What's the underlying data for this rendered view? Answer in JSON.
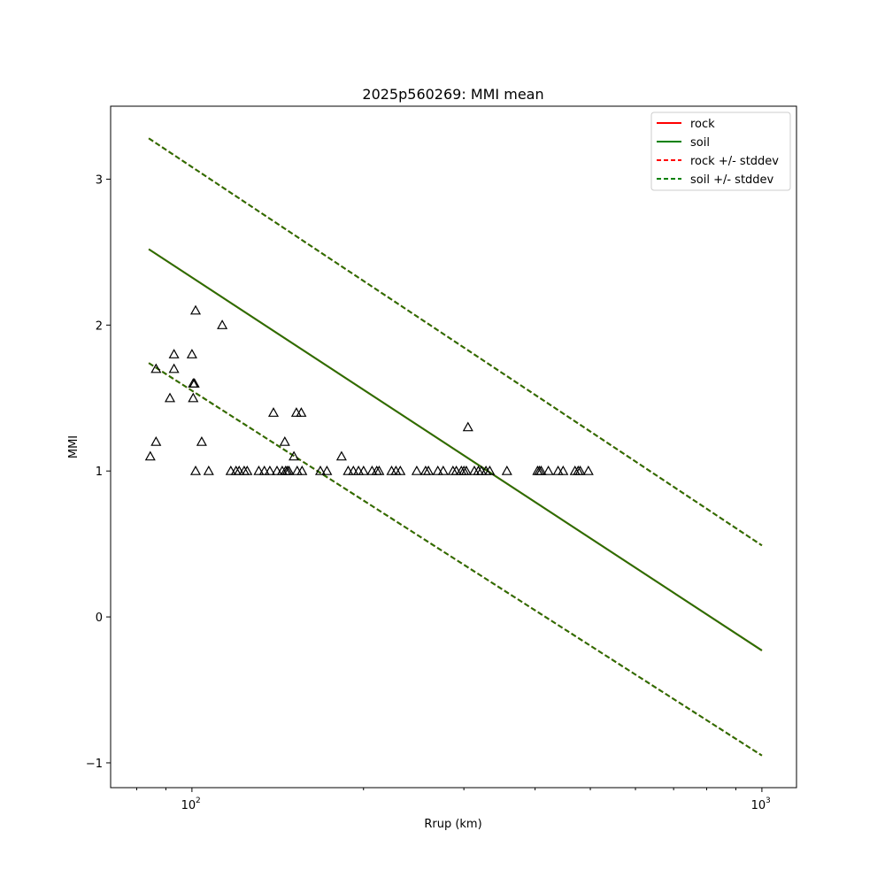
{
  "chart_data": {
    "type": "scatter",
    "title": "2025p560269: MMI mean",
    "xlabel": "Rrup (km)",
    "ylabel": "MMI",
    "xscale": "log",
    "xlim": [
      72,
      1150
    ],
    "ylim": [
      -1.17,
      3.5
    ],
    "xticks": [
      {
        "value": 100,
        "label": "10",
        "exp": "2"
      },
      {
        "value": 1000,
        "label": "10",
        "exp": "3"
      }
    ],
    "yticks": [
      {
        "value": -1,
        "label": "−1"
      },
      {
        "value": 0,
        "label": "0"
      },
      {
        "value": 1,
        "label": "1"
      },
      {
        "value": 2,
        "label": "2"
      },
      {
        "value": 3,
        "label": "3"
      }
    ],
    "legend": {
      "position": "top-right",
      "entries": [
        {
          "label": "rock",
          "color": "#ff0000",
          "style": "solid"
        },
        {
          "label": "soil",
          "color": "#008000",
          "style": "solid"
        },
        {
          "label": "rock +/- stddev",
          "color": "#ff0000",
          "style": "dashed"
        },
        {
          "label": "soil +/- stddev",
          "color": "#008000",
          "style": "dashed"
        }
      ]
    },
    "lines": [
      {
        "name": "rock",
        "color": "#ff0000",
        "style": "solid",
        "x": [
          84,
          1000
        ],
        "y": [
          2.52,
          -0.23
        ]
      },
      {
        "name": "rock +/- stddev",
        "color": "#ff0000",
        "style": "dashed",
        "x": [
          84,
          1000
        ],
        "y": [
          3.28,
          0.49
        ]
      },
      {
        "name": "rock +/- stddev",
        "color": "#ff0000",
        "style": "dashed",
        "x": [
          84,
          1000
        ],
        "y": [
          1.74,
          -0.95
        ]
      },
      {
        "name": "soil",
        "color": "#267300",
        "style": "solid",
        "x": [
          84,
          1000
        ],
        "y": [
          2.52,
          -0.23
        ]
      },
      {
        "name": "soil +/- stddev",
        "color": "#267300",
        "style": "dashed",
        "x": [
          84,
          1000
        ],
        "y": [
          3.28,
          0.49
        ]
      },
      {
        "name": "soil +/- stddev",
        "color": "#267300",
        "style": "dashed",
        "x": [
          84,
          1000
        ],
        "y": [
          1.74,
          -0.95
        ]
      }
    ],
    "points": {
      "marker": "triangle",
      "color": "#000000",
      "data": [
        [
          84.5,
          1.1
        ],
        [
          86.5,
          1.7
        ],
        [
          86.5,
          1.2
        ],
        [
          91.5,
          1.5
        ],
        [
          93,
          1.8
        ],
        [
          93,
          1.7
        ],
        [
          100,
          1.8
        ],
        [
          100.5,
          1.6
        ],
        [
          100.5,
          1.5
        ],
        [
          101,
          1.6
        ],
        [
          101.5,
          2.1
        ],
        [
          101.5,
          1.0
        ],
        [
          104,
          1.2
        ],
        [
          107,
          1.0
        ],
        [
          113,
          2.0
        ],
        [
          117,
          1.0
        ],
        [
          119.5,
          1.0
        ],
        [
          121,
          1.0
        ],
        [
          123.5,
          1.0
        ],
        [
          125,
          1.0
        ],
        [
          131,
          1.0
        ],
        [
          134,
          1.0
        ],
        [
          137,
          1.0
        ],
        [
          139,
          1.4
        ],
        [
          141,
          1.0
        ],
        [
          144,
          1.0
        ],
        [
          145.5,
          1.2
        ],
        [
          146,
          1.0
        ],
        [
          147,
          1.0
        ],
        [
          148,
          1.0
        ],
        [
          151,
          1.1
        ],
        [
          152.5,
          1.4
        ],
        [
          153,
          1.0
        ],
        [
          155.5,
          1.4
        ],
        [
          156,
          1.0
        ],
        [
          168,
          1.0
        ],
        [
          172.5,
          1.0
        ],
        [
          183,
          1.1
        ],
        [
          188,
          1.0
        ],
        [
          192,
          1.0
        ],
        [
          196,
          1.0
        ],
        [
          200,
          1.0
        ],
        [
          207,
          1.0
        ],
        [
          211,
          1.0
        ],
        [
          213,
          1.0
        ],
        [
          224,
          1.0
        ],
        [
          228,
          1.0
        ],
        [
          232,
          1.0
        ],
        [
          248,
          1.0
        ],
        [
          257,
          1.0
        ],
        [
          260,
          1.0
        ],
        [
          270,
          1.0
        ],
        [
          276,
          1.0
        ],
        [
          287,
          1.0
        ],
        [
          291,
          1.0
        ],
        [
          297,
          1.0
        ],
        [
          300,
          1.0
        ],
        [
          303,
          1.0
        ],
        [
          305,
          1.3
        ],
        [
          313,
          1.0
        ],
        [
          318,
          1.0
        ],
        [
          322,
          1.0
        ],
        [
          328,
          1.0
        ],
        [
          333,
          1.0
        ],
        [
          357,
          1.0
        ],
        [
          404,
          1.0
        ],
        [
          407,
          1.0
        ],
        [
          410,
          1.0
        ],
        [
          422,
          1.0
        ],
        [
          439,
          1.0
        ],
        [
          448,
          1.0
        ],
        [
          470,
          1.0
        ],
        [
          476,
          1.0
        ],
        [
          480,
          1.0
        ],
        [
          496,
          1.0
        ]
      ]
    }
  }
}
